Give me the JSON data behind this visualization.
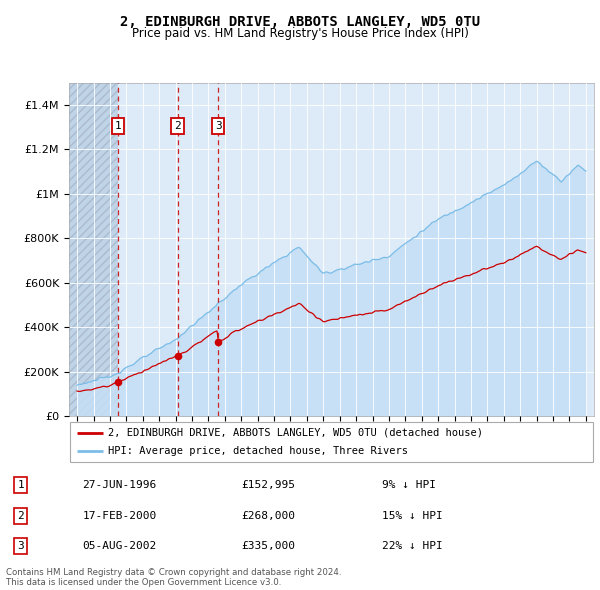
{
  "title": "2, EDINBURGH DRIVE, ABBOTS LANGLEY, WD5 0TU",
  "subtitle": "Price paid vs. HM Land Registry's House Price Index (HPI)",
  "hpi_color": "#7bbde8",
  "hpi_fill_color": "#c5dff5",
  "price_color": "#cc0000",
  "background_plot": "#ddeaf7",
  "hatch_color": "#c0d4e8",
  "transactions": [
    {
      "label": "1",
      "date": 1996.49,
      "price": 152995
    },
    {
      "label": "2",
      "date": 2000.12,
      "price": 268000
    },
    {
      "label": "3",
      "date": 2002.59,
      "price": 335000
    }
  ],
  "table_rows": [
    [
      "1",
      "27-JUN-1996",
      "£152,995",
      "9% ↓ HPI"
    ],
    [
      "2",
      "17-FEB-2000",
      "£268,000",
      "15% ↓ HPI"
    ],
    [
      "3",
      "05-AUG-2002",
      "£335,000",
      "22% ↓ HPI"
    ]
  ],
  "legend_house_label": "2, EDINBURGH DRIVE, ABBOTS LANGLEY, WD5 0TU (detached house)",
  "legend_hpi_label": "HPI: Average price, detached house, Three Rivers",
  "footer": "Contains HM Land Registry data © Crown copyright and database right 2024.\nThis data is licensed under the Open Government Licence v3.0.",
  "ylim": [
    0,
    1500000
  ],
  "xlim": [
    1993.5,
    2025.5
  ],
  "yticks": [
    0,
    200000,
    400000,
    600000,
    800000,
    1000000,
    1200000,
    1400000
  ],
  "ytick_labels": [
    "£0",
    "£200K",
    "£400K",
    "£600K",
    "£800K",
    "£1M",
    "£1.2M",
    "£1.4M"
  ]
}
